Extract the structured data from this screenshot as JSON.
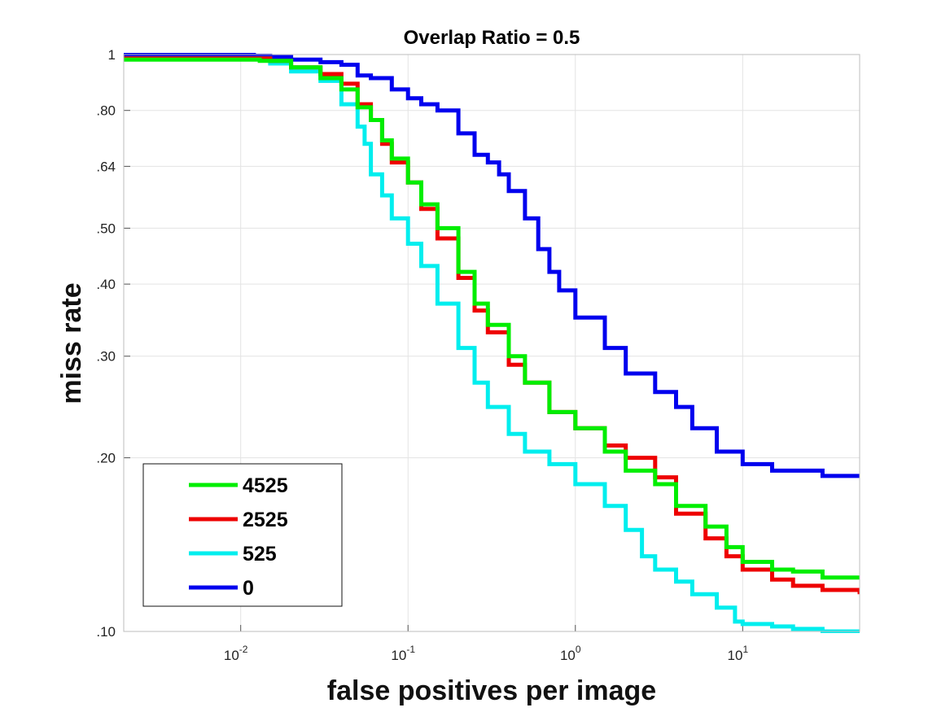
{
  "chart_data": {
    "type": "line",
    "title": "Overlap Ratio = 0.5",
    "xlabel": "false positives per image",
    "ylabel": "miss rate",
    "x_scale": "log",
    "y_scale": "log",
    "xlim": [
      0.002,
      50
    ],
    "ylim": [
      0.1,
      1
    ],
    "grid": true,
    "x_ticks": [
      {
        "base": "10",
        "exp": "-2",
        "value": 0.01
      },
      {
        "base": "10",
        "exp": "-1",
        "value": 0.1
      },
      {
        "base": "10",
        "exp": "0",
        "value": 1
      },
      {
        "base": "10",
        "exp": "1",
        "value": 10
      }
    ],
    "y_ticks": [
      {
        "label": "1",
        "value": 1
      },
      {
        "label": ".80",
        "value": 0.8
      },
      {
        "label": ".64",
        "value": 0.64
      },
      {
        "label": ".50",
        "value": 0.5
      },
      {
        "label": ".40",
        "value": 0.4
      },
      {
        "label": ".30",
        "value": 0.3
      },
      {
        "label": ".20",
        "value": 0.2
      },
      {
        "label": ".10",
        "value": 0.1
      }
    ],
    "legend_position": "bottom-left",
    "series": [
      {
        "name": "4525",
        "color": "#00ee00",
        "x": [
          0.002,
          0.01,
          0.013,
          0.02,
          0.03,
          0.04,
          0.05,
          0.06,
          0.07,
          0.08,
          0.1,
          0.12,
          0.15,
          0.2,
          0.25,
          0.3,
          0.4,
          0.5,
          0.7,
          1.0,
          1.5,
          2.0,
          3.0,
          4.0,
          6.0,
          8.0,
          10.0,
          15.0,
          20.0,
          30.0,
          50.0
        ],
        "y": [
          0.98,
          0.98,
          0.975,
          0.95,
          0.91,
          0.87,
          0.81,
          0.77,
          0.71,
          0.66,
          0.6,
          0.55,
          0.5,
          0.42,
          0.37,
          0.34,
          0.3,
          0.27,
          0.24,
          0.225,
          0.205,
          0.19,
          0.18,
          0.165,
          0.152,
          0.14,
          0.132,
          0.128,
          0.127,
          0.124,
          0.124
        ]
      },
      {
        "name": "2525",
        "color": "#ee0000",
        "x": [
          0.002,
          0.01,
          0.015,
          0.02,
          0.03,
          0.04,
          0.05,
          0.06,
          0.07,
          0.08,
          0.1,
          0.12,
          0.15,
          0.2,
          0.25,
          0.3,
          0.4,
          0.5,
          0.7,
          1.0,
          1.5,
          2.0,
          3.0,
          4.0,
          6.0,
          8.0,
          10.0,
          15.0,
          20.0,
          30.0,
          50.0
        ],
        "y": [
          0.985,
          0.985,
          0.975,
          0.95,
          0.925,
          0.89,
          0.82,
          0.77,
          0.7,
          0.65,
          0.6,
          0.54,
          0.48,
          0.41,
          0.36,
          0.33,
          0.29,
          0.27,
          0.24,
          0.225,
          0.21,
          0.2,
          0.185,
          0.16,
          0.145,
          0.135,
          0.128,
          0.123,
          0.12,
          0.118,
          0.116
        ]
      },
      {
        "name": "525",
        "color": "#00eeee",
        "x": [
          0.002,
          0.01,
          0.015,
          0.02,
          0.03,
          0.04,
          0.05,
          0.055,
          0.06,
          0.07,
          0.08,
          0.1,
          0.12,
          0.15,
          0.2,
          0.25,
          0.3,
          0.4,
          0.5,
          0.7,
          1.0,
          1.5,
          2.0,
          2.5,
          3.0,
          4.0,
          5.0,
          7.0,
          9.0,
          10.0,
          15.0,
          20.0,
          30.0,
          50.0
        ],
        "y": [
          0.985,
          0.985,
          0.965,
          0.935,
          0.9,
          0.82,
          0.75,
          0.7,
          0.62,
          0.57,
          0.52,
          0.47,
          0.43,
          0.37,
          0.31,
          0.27,
          0.245,
          0.22,
          0.205,
          0.195,
          0.18,
          0.165,
          0.15,
          0.135,
          0.128,
          0.122,
          0.116,
          0.11,
          0.104,
          0.103,
          0.102,
          0.101,
          0.1,
          0.099
        ]
      },
      {
        "name": "0",
        "color": "#0000ee",
        "x": [
          0.002,
          0.01,
          0.012,
          0.015,
          0.02,
          0.03,
          0.04,
          0.05,
          0.06,
          0.08,
          0.1,
          0.12,
          0.15,
          0.2,
          0.25,
          0.3,
          0.35,
          0.4,
          0.5,
          0.6,
          0.7,
          0.8,
          1.0,
          1.5,
          2.0,
          3.0,
          4.0,
          5.0,
          7.0,
          10.0,
          15.0,
          20.0,
          30.0,
          50.0
        ],
        "y": [
          1.0,
          1.0,
          0.995,
          0.99,
          0.98,
          0.97,
          0.96,
          0.92,
          0.91,
          0.87,
          0.84,
          0.82,
          0.8,
          0.73,
          0.67,
          0.65,
          0.62,
          0.58,
          0.52,
          0.46,
          0.42,
          0.39,
          0.35,
          0.31,
          0.28,
          0.26,
          0.245,
          0.225,
          0.205,
          0.195,
          0.19,
          0.19,
          0.186,
          0.186
        ]
      }
    ]
  }
}
